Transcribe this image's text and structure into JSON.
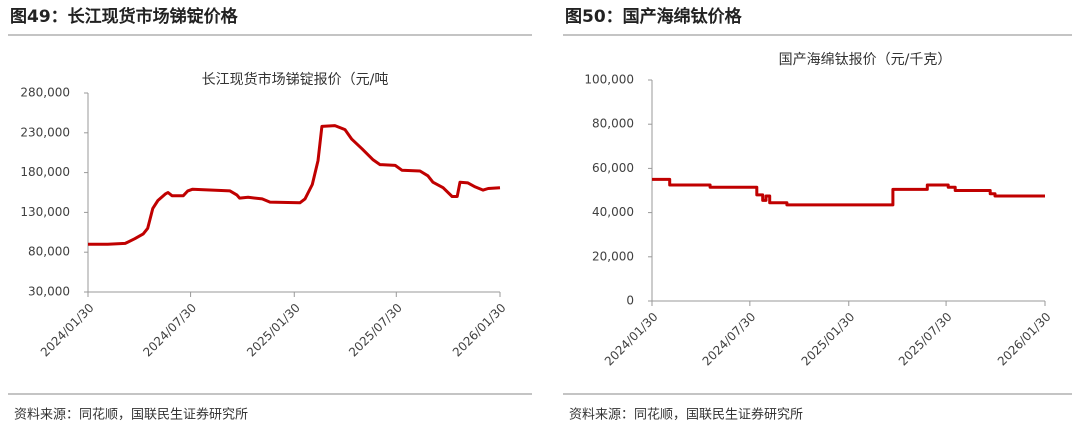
{
  "chart_data": [
    {
      "type": "line",
      "figure_title": "图49：长江现货市场锑锭价格",
      "title": "长江现货市场锑锭报价（元/吨",
      "source": "资料来源：同花顺，国联民生证券研究所",
      "x": [
        "2024/01/30",
        "2024/03/05",
        "2024/04/05",
        "2024/04/22",
        "2024/05/07",
        "2024/05/15",
        "2024/05/24",
        "2024/06/02",
        "2024/06/15",
        "2024/06/20",
        "2024/06/27",
        "2024/07/17",
        "2024/07/25",
        "2024/08/02",
        "2024/10/08",
        "2024/10/20",
        "2024/10/25",
        "2024/11/09",
        "2024/12/04",
        "2024/12/18",
        "2025/02/09",
        "2025/02/18",
        "2025/03/03",
        "2025/03/13",
        "2025/03/20",
        "2025/04/12",
        "2025/04/30",
        "2025/05/12",
        "2025/05/30",
        "2025/06/19",
        "2025/07/01",
        "2025/07/28",
        "2025/08/09",
        "2025/09/10",
        "2025/09/24",
        "2025/10/03",
        "2025/10/21",
        "2025/11/06",
        "2025/11/15",
        "2025/11/20",
        "2025/12/04",
        "2025/12/17",
        "2025/12/31",
        "2026/01/09",
        "2026/01/30"
      ],
      "series": [
        {
          "color": "#c00000",
          "values": [
            90000,
            90000,
            91000,
            97000,
            103000,
            110000,
            135000,
            145000,
            153000,
            155000,
            151000,
            151000,
            157000,
            159000,
            157000,
            152000,
            148000,
            149000,
            147000,
            143000,
            142000,
            147000,
            165000,
            195000,
            238000,
            239000,
            234000,
            222000,
            210000,
            196000,
            190000,
            189000,
            183000,
            182000,
            176000,
            168000,
            161000,
            150000,
            150000,
            168000,
            167000,
            162000,
            158000,
            160000,
            161000
          ]
        }
      ],
      "xlim": [
        "2024/01/30",
        "2026/01/30"
      ],
      "xticks": [
        "2024/01/30",
        "2024/07/30",
        "2025/01/30",
        "2025/07/30",
        "2026/01/30"
      ],
      "ylim": [
        30000,
        280000
      ],
      "yticks": [
        {
          "value": 30000,
          "label": "30,000"
        },
        {
          "value": 80000,
          "label": "80,000"
        },
        {
          "value": 130000,
          "label": "130,000"
        },
        {
          "value": 180000,
          "label": "180,000"
        },
        {
          "value": 230000,
          "label": "230,000"
        },
        {
          "value": 280000,
          "label": "280,000"
        }
      ]
    },
    {
      "type": "line",
      "figure_title": "图50：国产海绵钛价格",
      "title": "国产海绵钛报价（元/千克）",
      "source": "资料来源：同花顺，国联民生证券研究所",
      "x": [
        "2024/01/30",
        "2024/03/03",
        "2024/03/03",
        "2024/05/17",
        "2024/05/17",
        "2024/08/12",
        "2024/08/12",
        "2024/08/23",
        "2024/08/23",
        "2024/08/29",
        "2024/08/29",
        "2024/09/05",
        "2024/09/05",
        "2024/10/07",
        "2024/10/07",
        "2024/10/26",
        "2024/10/26",
        "2025/04/22",
        "2025/04/22",
        "2025/06/25",
        "2025/06/25",
        "2025/08/03",
        "2025/08/03",
        "2025/08/16",
        "2025/08/16",
        "2025/10/20",
        "2025/10/20",
        "2025/10/29",
        "2025/10/29",
        "2026/01/30"
      ],
      "series": [
        {
          "color": "#c00000",
          "values": [
            55000,
            55000,
            52500,
            52500,
            51500,
            51500,
            48000,
            48000,
            45500,
            45500,
            47500,
            47500,
            44500,
            44500,
            43500,
            43500,
            43500,
            43500,
            50500,
            50500,
            52500,
            52500,
            51500,
            51500,
            50000,
            50000,
            48500,
            48500,
            47500,
            47500
          ]
        }
      ],
      "xlim": [
        "2024/01/30",
        "2026/01/30"
      ],
      "xticks": [
        "2024/01/30",
        "2024/07/30",
        "2025/01/30",
        "2025/07/30",
        "2026/01/30"
      ],
      "ylim": [
        0,
        100000
      ],
      "yticks": [
        0,
        {
          "value": 20000,
          "label": "20,000"
        },
        {
          "value": 40000,
          "label": "40,000"
        },
        {
          "value": 60000,
          "label": "60,000"
        },
        {
          "value": 80000,
          "label": "80,000"
        },
        {
          "value": 100000,
          "label": "100,000"
        }
      ]
    }
  ]
}
